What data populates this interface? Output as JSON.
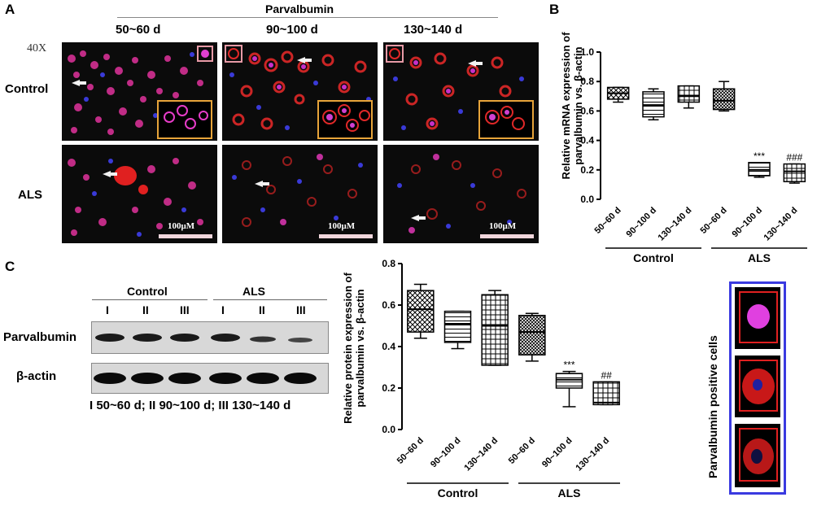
{
  "panel_a": {
    "letter": "A",
    "title": "Parvalbumin",
    "magnification": "40X",
    "time_columns": [
      "50~60 d",
      "90~100 d",
      "130~140 d"
    ],
    "rows": [
      "Control",
      "ALS"
    ],
    "scale_bar": "100μM"
  },
  "panel_b": {
    "letter": "B",
    "ylabel_line1": "Relative mRNA expression of",
    "ylabel_line2": "parvalbumin vs. β-actin",
    "groups": [
      "Control",
      "ALS"
    ]
  },
  "panel_c": {
    "letter": "C",
    "blot_groups": [
      "Control",
      "ALS"
    ],
    "lanes": [
      "I",
      "II",
      "III",
      "I",
      "II",
      "III"
    ],
    "blot_rows": [
      "Parvalbumin",
      "β-actin"
    ],
    "legend": "I 50~60 d; II 90~100 d; III 130~140 d",
    "ylabel_line1": "Relative protein expression of",
    "ylabel_line2": "parvalbumin vs. β-actin",
    "groups": [
      "Control",
      "ALS"
    ]
  },
  "side_panel": {
    "label": "Parvalbumin positive cells"
  },
  "chart_data": [
    {
      "type": "box",
      "id": "mrna",
      "title": "",
      "ylabel": "Relative mRNA expression of parvalbumin vs. β-actin",
      "ylim": [
        0,
        1.0
      ],
      "yticks": [
        "0.0",
        "0.2",
        "0.4",
        "0.6",
        "0.8",
        "1.0"
      ],
      "categories": [
        "50~60 d",
        "90~100 d",
        "130~140 d",
        "50~60 d",
        "90~100 d",
        "130~140 d"
      ],
      "group_labels": [
        "Control",
        "ALS"
      ],
      "boxes": [
        {
          "min": 0.66,
          "q1": 0.68,
          "median": 0.72,
          "q3": 0.76,
          "max": 0.76,
          "pattern": "check"
        },
        {
          "min": 0.54,
          "q1": 0.56,
          "median": 0.64,
          "q3": 0.73,
          "max": 0.75,
          "pattern": "hlines"
        },
        {
          "min": 0.62,
          "q1": 0.66,
          "median": 0.7,
          "q3": 0.77,
          "max": 0.77,
          "pattern": "grid"
        },
        {
          "min": 0.6,
          "q1": 0.61,
          "median": 0.67,
          "q3": 0.75,
          "max": 0.8,
          "pattern": "dense"
        },
        {
          "min": 0.15,
          "q1": 0.16,
          "median": 0.2,
          "q3": 0.25,
          "max": 0.25,
          "pattern": "hlines"
        },
        {
          "min": 0.11,
          "q1": 0.12,
          "median": 0.19,
          "q3": 0.24,
          "max": 0.24,
          "pattern": "grid"
        }
      ],
      "annotations": [
        {
          "index": 4,
          "text": "***"
        },
        {
          "index": 5,
          "text": "###"
        }
      ]
    },
    {
      "type": "box",
      "id": "protein",
      "title": "",
      "ylabel": "Relative protein expression of parvalbumin vs. β-actin",
      "ylim": [
        0,
        0.8
      ],
      "yticks": [
        "0.0",
        "0.2",
        "0.4",
        "0.6",
        "0.8"
      ],
      "categories": [
        "50~60 d",
        "90~100 d",
        "130~140 d",
        "50~60 d",
        "90~100 d",
        "130~140 d"
      ],
      "group_labels": [
        "Control",
        "ALS"
      ],
      "boxes": [
        {
          "min": 0.44,
          "q1": 0.47,
          "median": 0.58,
          "q3": 0.67,
          "max": 0.7,
          "pattern": "check"
        },
        {
          "min": 0.39,
          "q1": 0.42,
          "median": 0.51,
          "q3": 0.57,
          "max": 0.57,
          "pattern": "hlines"
        },
        {
          "min": 0.31,
          "q1": 0.31,
          "median": 0.5,
          "q3": 0.65,
          "max": 0.67,
          "pattern": "grid"
        },
        {
          "min": 0.33,
          "q1": 0.36,
          "median": 0.47,
          "q3": 0.55,
          "max": 0.56,
          "pattern": "dense"
        },
        {
          "min": 0.11,
          "q1": 0.2,
          "median": 0.24,
          "q3": 0.27,
          "max": 0.28,
          "pattern": "hlines"
        },
        {
          "min": 0.12,
          "q1": 0.12,
          "median": 0.13,
          "q3": 0.23,
          "max": 0.23,
          "pattern": "grid"
        }
      ],
      "annotations": [
        {
          "index": 4,
          "text": "***"
        },
        {
          "index": 5,
          "text": "##"
        }
      ]
    }
  ]
}
